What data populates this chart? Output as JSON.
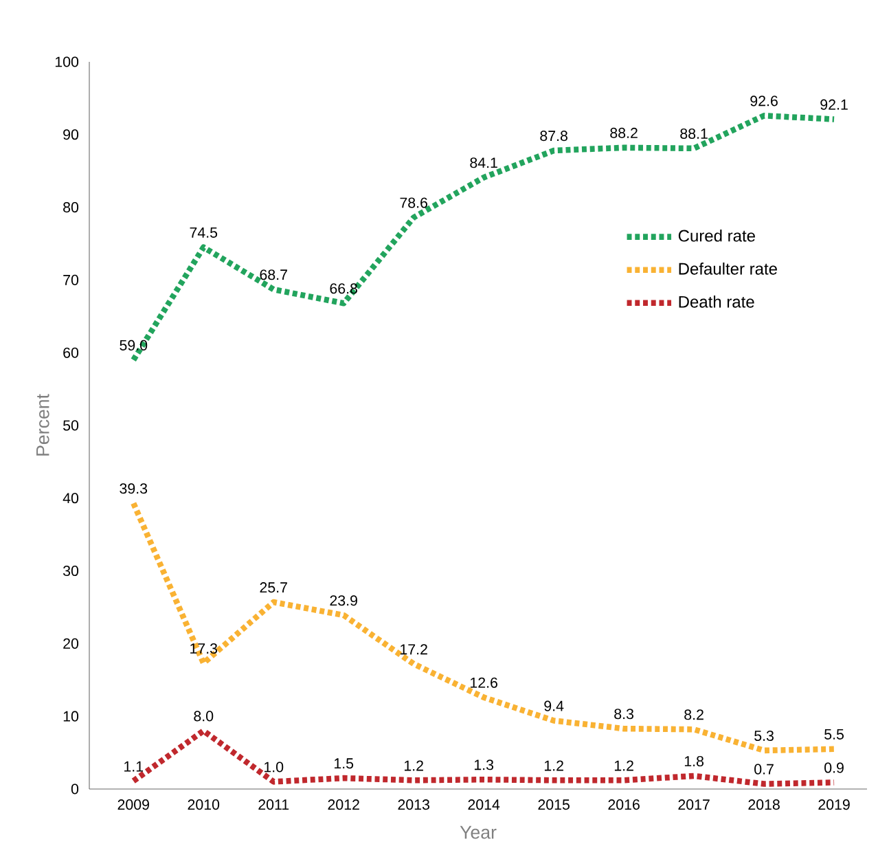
{
  "chart_data": {
    "type": "line",
    "xlabel": "Year",
    "ylabel": "Percent",
    "categories": [
      "2009",
      "2010",
      "2011",
      "2012",
      "2013",
      "2014",
      "2015",
      "2016",
      "2017",
      "2018",
      "2019"
    ],
    "series": [
      {
        "name": "Cured rate",
        "color": "#22a45d",
        "values": [
          59.0,
          74.5,
          68.7,
          66.8,
          78.6,
          84.1,
          87.8,
          88.2,
          88.1,
          92.6,
          92.1
        ],
        "value_labels": [
          "59.0",
          "74.5",
          "68.7",
          "66.8",
          "78.6",
          "84.1",
          "87.8",
          "88.2",
          "88.1",
          "92.6",
          "92.1"
        ]
      },
      {
        "name": "Defaulter rate",
        "color": "#f9b233",
        "values": [
          39.3,
          17.3,
          25.7,
          23.9,
          17.2,
          12.6,
          9.4,
          8.3,
          8.2,
          5.3,
          5.5
        ],
        "value_labels": [
          "39.3",
          "17.3",
          "25.7",
          "23.9",
          "17.2",
          "12.6",
          "9.4",
          "8.3",
          "8.2",
          "5.3",
          "5.5"
        ]
      },
      {
        "name": "Death rate",
        "color": "#c0282d",
        "values": [
          1.1,
          8.0,
          1.0,
          1.5,
          1.2,
          1.3,
          1.2,
          1.2,
          1.8,
          0.7,
          0.9
        ],
        "value_labels": [
          "1.1",
          "8.0",
          "1.0",
          "1.5",
          "1.2",
          "1.3",
          "1.2",
          "1.2",
          "1.8",
          "0.7",
          "0.9"
        ]
      }
    ],
    "ylim": [
      0,
      100
    ],
    "yticks": [
      0,
      10,
      20,
      30,
      40,
      50,
      60,
      70,
      80,
      90,
      100
    ],
    "grid": false,
    "legend": "right",
    "marker": "none",
    "line_style": "dotted"
  }
}
